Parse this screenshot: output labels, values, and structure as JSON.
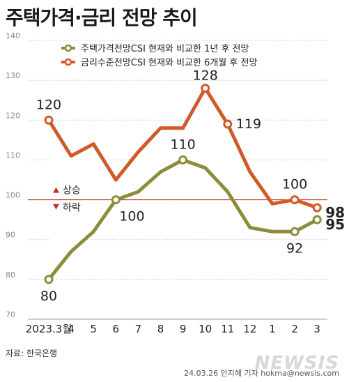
{
  "title": "주택가격·금리 전망 추이",
  "source": "자료: 한국은행",
  "credit": "24.03.26 안지혜 기자 hokma@newsis.com",
  "watermark": "NEWSIS",
  "colors": {
    "olive": "#8c8c3c",
    "orange": "#d05a28",
    "ref": "#c0302a",
    "grid": "#cfcfcf"
  },
  "chart_data": {
    "type": "line",
    "categories": [
      "2023.3월",
      "4",
      "5",
      "6",
      "7",
      "8",
      "9",
      "10",
      "11",
      "12",
      "1",
      "2",
      "3"
    ],
    "ylim": [
      70,
      140
    ],
    "yticks": [
      70,
      80,
      90,
      100,
      110,
      120,
      130,
      140
    ],
    "grid": true,
    "reference_line": 100,
    "reference_labels": {
      "up": "상승",
      "down": "하락"
    },
    "legend_position": "top-left",
    "series": [
      {
        "name": "주택가격전망CSI 현재와 비교한 1년 후 전망",
        "color": "#8c8c3c",
        "values": [
          80,
          87,
          92,
          100,
          102,
          107,
          110,
          108,
          102,
          93,
          92,
          92,
          95
        ]
      },
      {
        "name": "금리수준전망CSI 현재와 비교한 6개월 후 전망",
        "color": "#d05a28",
        "values": [
          120,
          111,
          114,
          105,
          112,
          118,
          118,
          128,
          119,
          107,
          99,
          100,
          98
        ]
      }
    ],
    "annotations": [
      {
        "series": 1,
        "index": 0,
        "text": "120"
      },
      {
        "series": 1,
        "index": 7,
        "text": "128"
      },
      {
        "series": 1,
        "index": 8,
        "text": "119"
      },
      {
        "series": 1,
        "index": 11,
        "text": "100"
      },
      {
        "series": 1,
        "index": 12,
        "text": "98"
      },
      {
        "series": 0,
        "index": 0,
        "text": "80"
      },
      {
        "series": 0,
        "index": 3,
        "text": "100"
      },
      {
        "series": 0,
        "index": 6,
        "text": "110"
      },
      {
        "series": 0,
        "index": 11,
        "text": "92"
      },
      {
        "series": 0,
        "index": 12,
        "text": "95"
      }
    ]
  }
}
